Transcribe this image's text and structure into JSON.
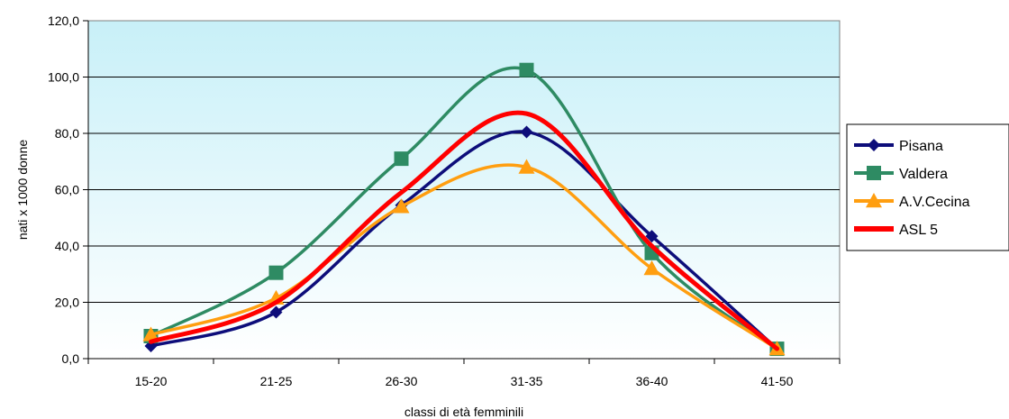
{
  "chart_data": {
    "type": "line",
    "categories": [
      "15-20",
      "21-25",
      "26-30",
      "31-35",
      "36-40",
      "41-50"
    ],
    "xlabel": "classi di età femminili",
    "ylabel": "nati x 1000 donne",
    "ylim": [
      0,
      120
    ],
    "yticks": [
      "0,0",
      "20,0",
      "40,0",
      "60,0",
      "80,0",
      "100,0",
      "120,0"
    ],
    "ytick_values": [
      0,
      20,
      40,
      60,
      80,
      100,
      120
    ],
    "grid": true,
    "legend_position": "right",
    "plot_background": "gradient light cyan to white",
    "series": [
      {
        "name": "Pisana",
        "values": [
          4.5,
          16.5,
          54.5,
          80.5,
          43.5,
          3.5
        ],
        "color": "#0d0d7a",
        "marker": "diamond"
      },
      {
        "name": "Valdera",
        "values": [
          8.0,
          30.5,
          71.0,
          102.5,
          37.5,
          3.5
        ],
        "color": "#2e8b63",
        "marker": "square"
      },
      {
        "name": "A.V.Cecina",
        "values": [
          8.5,
          21.5,
          54.0,
          68.0,
          32.0,
          3.5
        ],
        "color": "#ff9e10",
        "marker": "triangle"
      },
      {
        "name": "ASL 5",
        "values": [
          6.0,
          20.0,
          59.0,
          87.0,
          40.0,
          3.5
        ],
        "color": "#ff0000",
        "marker": "none"
      }
    ]
  }
}
